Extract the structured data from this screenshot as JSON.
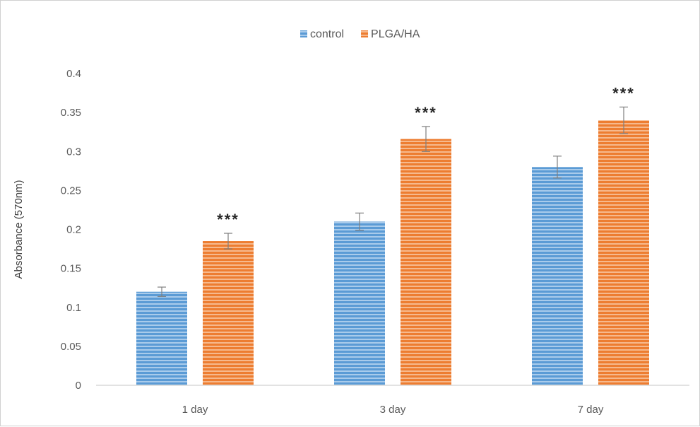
{
  "chart_data": {
    "type": "bar",
    "title": "",
    "xlabel": "",
    "ylabel": "Absorbance (570nm)",
    "categories": [
      "1 day",
      "3 day",
      "7 day"
    ],
    "series": [
      {
        "name": "control",
        "color": "#5b9bd5",
        "values": [
          0.12,
          0.21,
          0.28
        ],
        "errors": [
          0.006,
          0.011,
          0.014
        ]
      },
      {
        "name": "PLGA/HA",
        "color": "#ed7d31",
        "values": [
          0.185,
          0.316,
          0.34
        ],
        "errors": [
          0.01,
          0.016,
          0.017
        ]
      }
    ],
    "ylim": [
      0,
      0.4
    ],
    "yticks": [
      "0",
      "0.05",
      "0.1",
      "0.15",
      "0.2",
      "0.25",
      "0.3",
      "0.35",
      "0.4"
    ],
    "grid": false,
    "legend_position": "top-center",
    "annotations": [
      {
        "category": "1 day",
        "series": "PLGA/HA",
        "text": "***"
      },
      {
        "category": "3 day",
        "series": "PLGA/HA",
        "text": "***"
      },
      {
        "category": "7 day",
        "series": "PLGA/HA",
        "text": "***"
      }
    ]
  }
}
